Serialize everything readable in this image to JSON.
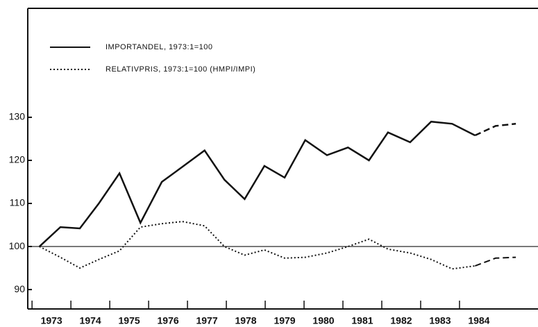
{
  "chart_data": {
    "type": "line",
    "series": [
      {
        "name": "IMPORTANDEL, 1973:1=100",
        "color": "#111",
        "style": "solid",
        "dashed_from": 21,
        "x": [
          1972.69,
          1973.23,
          1973.73,
          1974.22,
          1974.75,
          1975.29,
          1975.84,
          1976.37,
          1976.94,
          1977.45,
          1977.97,
          1978.48,
          1979.0,
          1979.53,
          1980.09,
          1980.63,
          1981.17,
          1981.66,
          1982.23,
          1982.77,
          1983.31,
          1983.9,
          1984.43,
          1984.95
        ],
        "values": [
          100,
          104.5,
          104.2,
          110,
          117,
          105.5,
          115,
          118.5,
          122.3,
          115.5,
          111,
          118.7,
          116,
          124.7,
          121.2,
          123,
          120,
          126.5,
          124.2,
          129,
          128.5,
          125.8,
          128,
          128.5
        ]
      },
      {
        "name": "RELATIVPRIS, 1973:1=100  (HMPI/IMPI)",
        "color": "#111",
        "style": "dotted",
        "dashed_from": 21,
        "x": [
          1972.69,
          1973.23,
          1973.73,
          1974.22,
          1974.75,
          1975.29,
          1975.84,
          1976.37,
          1976.94,
          1977.45,
          1977.97,
          1978.48,
          1979.0,
          1979.53,
          1980.09,
          1980.63,
          1981.17,
          1981.66,
          1982.23,
          1982.77,
          1983.31,
          1983.9,
          1984.43,
          1984.95
        ],
        "values": [
          100,
          97.5,
          95,
          97,
          99,
          104.5,
          105.3,
          105.8,
          104.8,
          100,
          98,
          99.2,
          97.3,
          97.5,
          98.5,
          100,
          101.7,
          99.4,
          98.5,
          97,
          94.8,
          95.5,
          97.3,
          97.5
        ]
      }
    ],
    "xlim": [
      1972.39,
      1985.52
    ],
    "xticks": [
      1973,
      1974,
      1975,
      1976,
      1977,
      1978,
      1979,
      1980,
      1981,
      1982,
      1983,
      1984
    ],
    "ylim": [
      85.5,
      155.3
    ],
    "yticks": [
      90,
      100,
      110,
      120,
      130
    ],
    "hline": 100
  }
}
